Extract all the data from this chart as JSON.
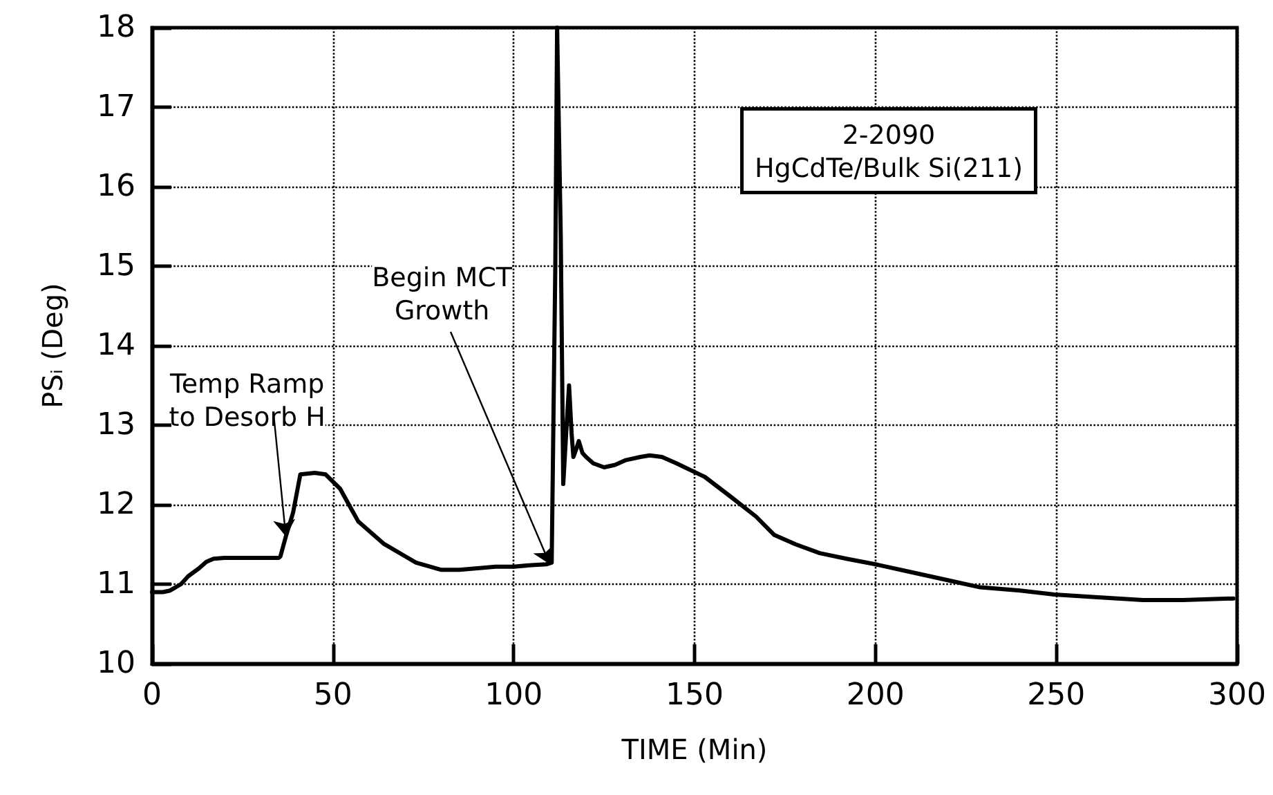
{
  "chart_data": {
    "type": "line",
    "xlabel": "TIME (Min)",
    "ylabel": "PSᵢ (Deg)",
    "xlim": [
      0,
      300
    ],
    "ylim": [
      10,
      18
    ],
    "xticks": [
      0,
      50,
      100,
      150,
      200,
      250,
      300
    ],
    "yticks": [
      10,
      11,
      12,
      13,
      14,
      15,
      16,
      17,
      18
    ],
    "grid": true,
    "marker": "none",
    "line_style": "solid",
    "series": [
      {
        "color": "#000000",
        "x": [
          0,
          3,
          5,
          8,
          10,
          13,
          15,
          17,
          20,
          25,
          30,
          35,
          35.5,
          37,
          39,
          41,
          45,
          48,
          52,
          57,
          64,
          70,
          73,
          80,
          85,
          90,
          95,
          100,
          105,
          109,
          110.5,
          111.5,
          112,
          113,
          113.7,
          114.5,
          115.3,
          116,
          116.5,
          117.3,
          118,
          119,
          120,
          122,
          125,
          128,
          131,
          135,
          137.6,
          141,
          145,
          152.8,
          160,
          167,
          172,
          178,
          184.6,
          192,
          200,
          210,
          220,
          229,
          240,
          249.5,
          260,
          274,
          285,
          299
        ],
        "values": [
          10.9,
          10.9,
          10.92,
          11.0,
          11.1,
          11.2,
          11.28,
          11.32,
          11.33,
          11.33,
          11.33,
          11.33,
          11.35,
          11.6,
          11.9,
          12.38,
          12.4,
          12.38,
          12.2,
          11.79,
          11.51,
          11.35,
          11.27,
          11.18,
          11.18,
          11.2,
          11.22,
          11.22,
          11.24,
          11.25,
          11.27,
          15,
          18,
          15.4,
          12.26,
          12.9,
          13.5,
          12.9,
          12.6,
          12.7,
          12.8,
          12.65,
          12.6,
          12.52,
          12.47,
          12.5,
          12.56,
          12.6,
          12.62,
          12.6,
          12.52,
          12.35,
          12.1,
          11.85,
          11.62,
          11.5,
          11.39,
          11.32,
          11.25,
          11.15,
          11.05,
          10.96,
          10.92,
          10.87,
          10.84,
          10.8,
          10.8,
          10.82
        ]
      }
    ],
    "annotations": [
      {
        "text": "Temp Ramp\nto Desorb H",
        "x": 37,
        "y": 11.6
      },
      {
        "text": "Begin MCT\nGrowth",
        "x": 110,
        "y": 11.25
      },
      "2-2090\nHgCdTe/Bulk Si(211)"
    ]
  }
}
